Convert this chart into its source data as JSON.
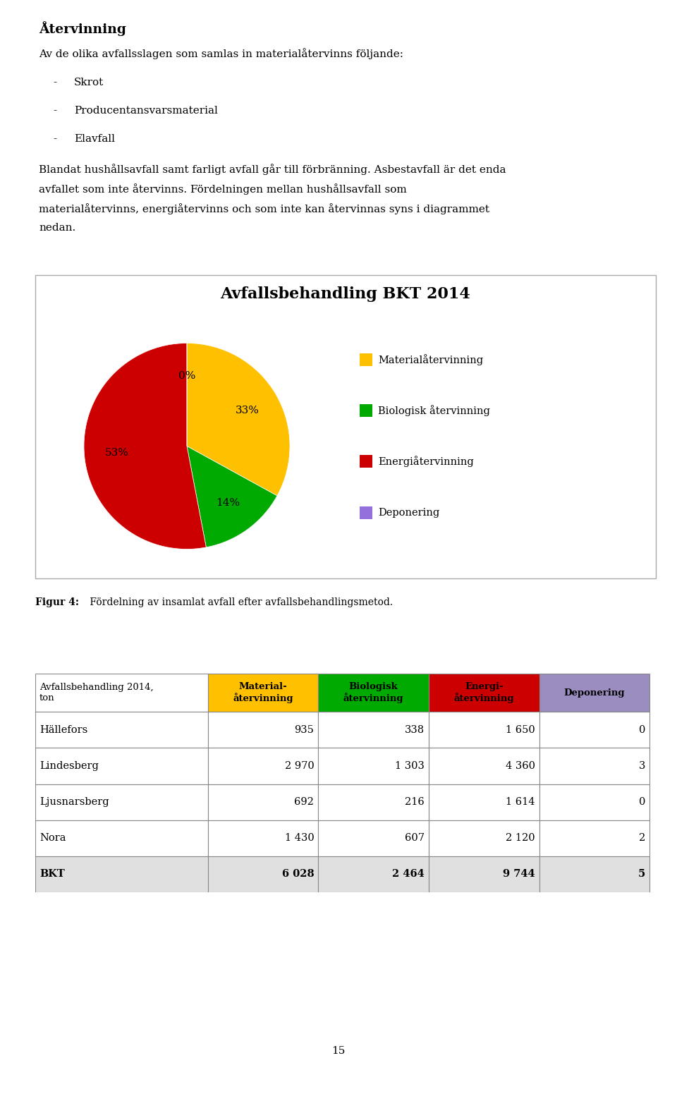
{
  "title": "Återvinning",
  "paragraph1": "Av de olika avfallsslagen som samlas in materialåtervinns följande:",
  "bullets": [
    "Skrot",
    "Producentansvarsmaterial",
    "Elavfall"
  ],
  "paragraph2": "Blandat hushållsavfall samt farligt avfall går till förbränning. Asbestavfall är det enda avfallet som inte återvinns. Fördelningen mellan hushållsavfall som materialåtervinns, energiåtervinns och som inte kan återvinnas syns i diagrammet nedan.",
  "chart_title": "Avfallsbehandling BKT 2014",
  "pie_values": [
    33,
    14,
    53,
    0
  ],
  "pie_labels": [
    "33%",
    "14%",
    "53%",
    "0%"
  ],
  "pie_colors": [
    "#FFC000",
    "#00AA00",
    "#CC0000",
    "#7B68EE"
  ],
  "legend_labels": [
    "Materialåtervinning",
    "Biologisk återvinning",
    "Energiåtervinning",
    "Deponering"
  ],
  "legend_colors": [
    "#FFC000",
    "#00AA00",
    "#CC0000",
    "#9370DB"
  ],
  "figur_bold": "Figur 4:",
  "figur_normal": " Fördelning av insamlat avfall efter avfallsbehandlingsmetod.",
  "table_header": [
    "Avfallsbehandling 2014,\nton",
    "Material-\nåtervinning",
    "Biologisk\nåtervinning",
    "Energi-\nåtervinning",
    "Deponering"
  ],
  "table_header_colors": [
    "#FFFFFF",
    "#FFC000",
    "#00AA00",
    "#CC0000",
    "#9B8DC0"
  ],
  "table_rows": [
    [
      "Hällefors",
      "935",
      "338",
      "1 650",
      "0"
    ],
    [
      "Lindesberg",
      "2 970",
      "1 303",
      "4 360",
      "3"
    ],
    [
      "Ljusnarsberg",
      "692",
      "216",
      "1 614",
      "0"
    ],
    [
      "Nora",
      "1 430",
      "607",
      "2 120",
      "2"
    ],
    [
      "BKT",
      "6 028",
      "2 464",
      "9 744",
      "5"
    ]
  ],
  "page_number": "15",
  "background_color": "#FFFFFF"
}
